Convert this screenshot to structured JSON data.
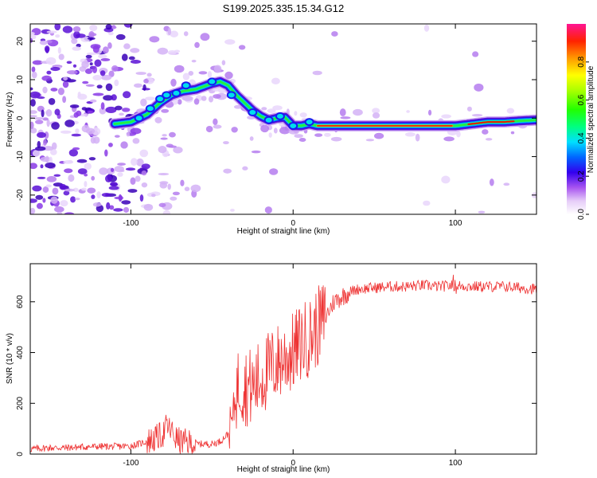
{
  "chart_data": [
    {
      "type": "heatmap",
      "title": "S199.2025.335.15.34.G12",
      "xlabel": "Height of straight line (km)",
      "ylabel": "Frequency (Hz)",
      "xlim": [
        -162,
        150
      ],
      "ylim": [
        -25,
        24.5
      ],
      "xticks": [
        -100,
        0,
        100
      ],
      "yticks": [
        -20,
        -10,
        0,
        10,
        20
      ],
      "colorbar": {
        "label": "Normalized spectral amplitude",
        "range": [
          0,
          1
        ],
        "ticks": [
          "0.0",
          "0.2",
          "0.4",
          "0.6",
          "0.8"
        ]
      },
      "ridge": {
        "x": [
          -110,
          -100,
          -90,
          -82,
          -75,
          -68,
          -60,
          -50,
          -45,
          -40,
          -35,
          -30,
          -25,
          -20,
          -15,
          -10,
          -5,
          0,
          5,
          10,
          15,
          20,
          40,
          60,
          80,
          100,
          110,
          120,
          130,
          140,
          150
        ],
        "y": [
          -1.5,
          -1,
          1,
          4,
          6,
          7,
          7.5,
          9,
          9.5,
          8.5,
          6,
          4,
          2,
          0.5,
          -0.5,
          0,
          0.2,
          -2,
          -2,
          -1.5,
          -2,
          -2,
          -2,
          -2,
          -2,
          -2,
          -1.5,
          -1,
          -1,
          -0.7,
          -0.5
        ]
      }
    },
    {
      "type": "line",
      "xlabel": "Height of straight line (km)",
      "ylabel": "SNR (10 * v/v)",
      "xlim": [
        -162,
        150
      ],
      "ylim": [
        0,
        750
      ],
      "xticks": [
        -100,
        0,
        100
      ],
      "yticks": [
        0,
        200,
        400,
        600
      ],
      "series": [
        {
          "name": "SNR",
          "color": "#ee3333",
          "x": [
            -162,
            -150,
            -140,
            -130,
            -120,
            -110,
            -100,
            -95,
            -90,
            -85,
            -80,
            -78,
            -75,
            -72,
            -70,
            -65,
            -60,
            -55,
            -50,
            -45,
            -40,
            -37,
            -35,
            -33,
            -30,
            -25,
            -20,
            -15,
            -10,
            -5,
            0,
            5,
            10,
            15,
            20,
            25,
            30,
            35,
            40,
            50,
            60,
            70,
            80,
            90,
            100,
            110,
            120,
            130,
            140,
            150
          ],
          "y": [
            20,
            25,
            25,
            28,
            30,
            30,
            32,
            40,
            50,
            60,
            80,
            110,
            90,
            60,
            50,
            45,
            40,
            40,
            40,
            50,
            80,
            150,
            250,
            280,
            270,
            260,
            300,
            330,
            360,
            380,
            400,
            440,
            460,
            500,
            540,
            600,
            620,
            640,
            650,
            655,
            660,
            660,
            665,
            660,
            665,
            660,
            660,
            660,
            655,
            650
          ]
        }
      ]
    }
  ]
}
